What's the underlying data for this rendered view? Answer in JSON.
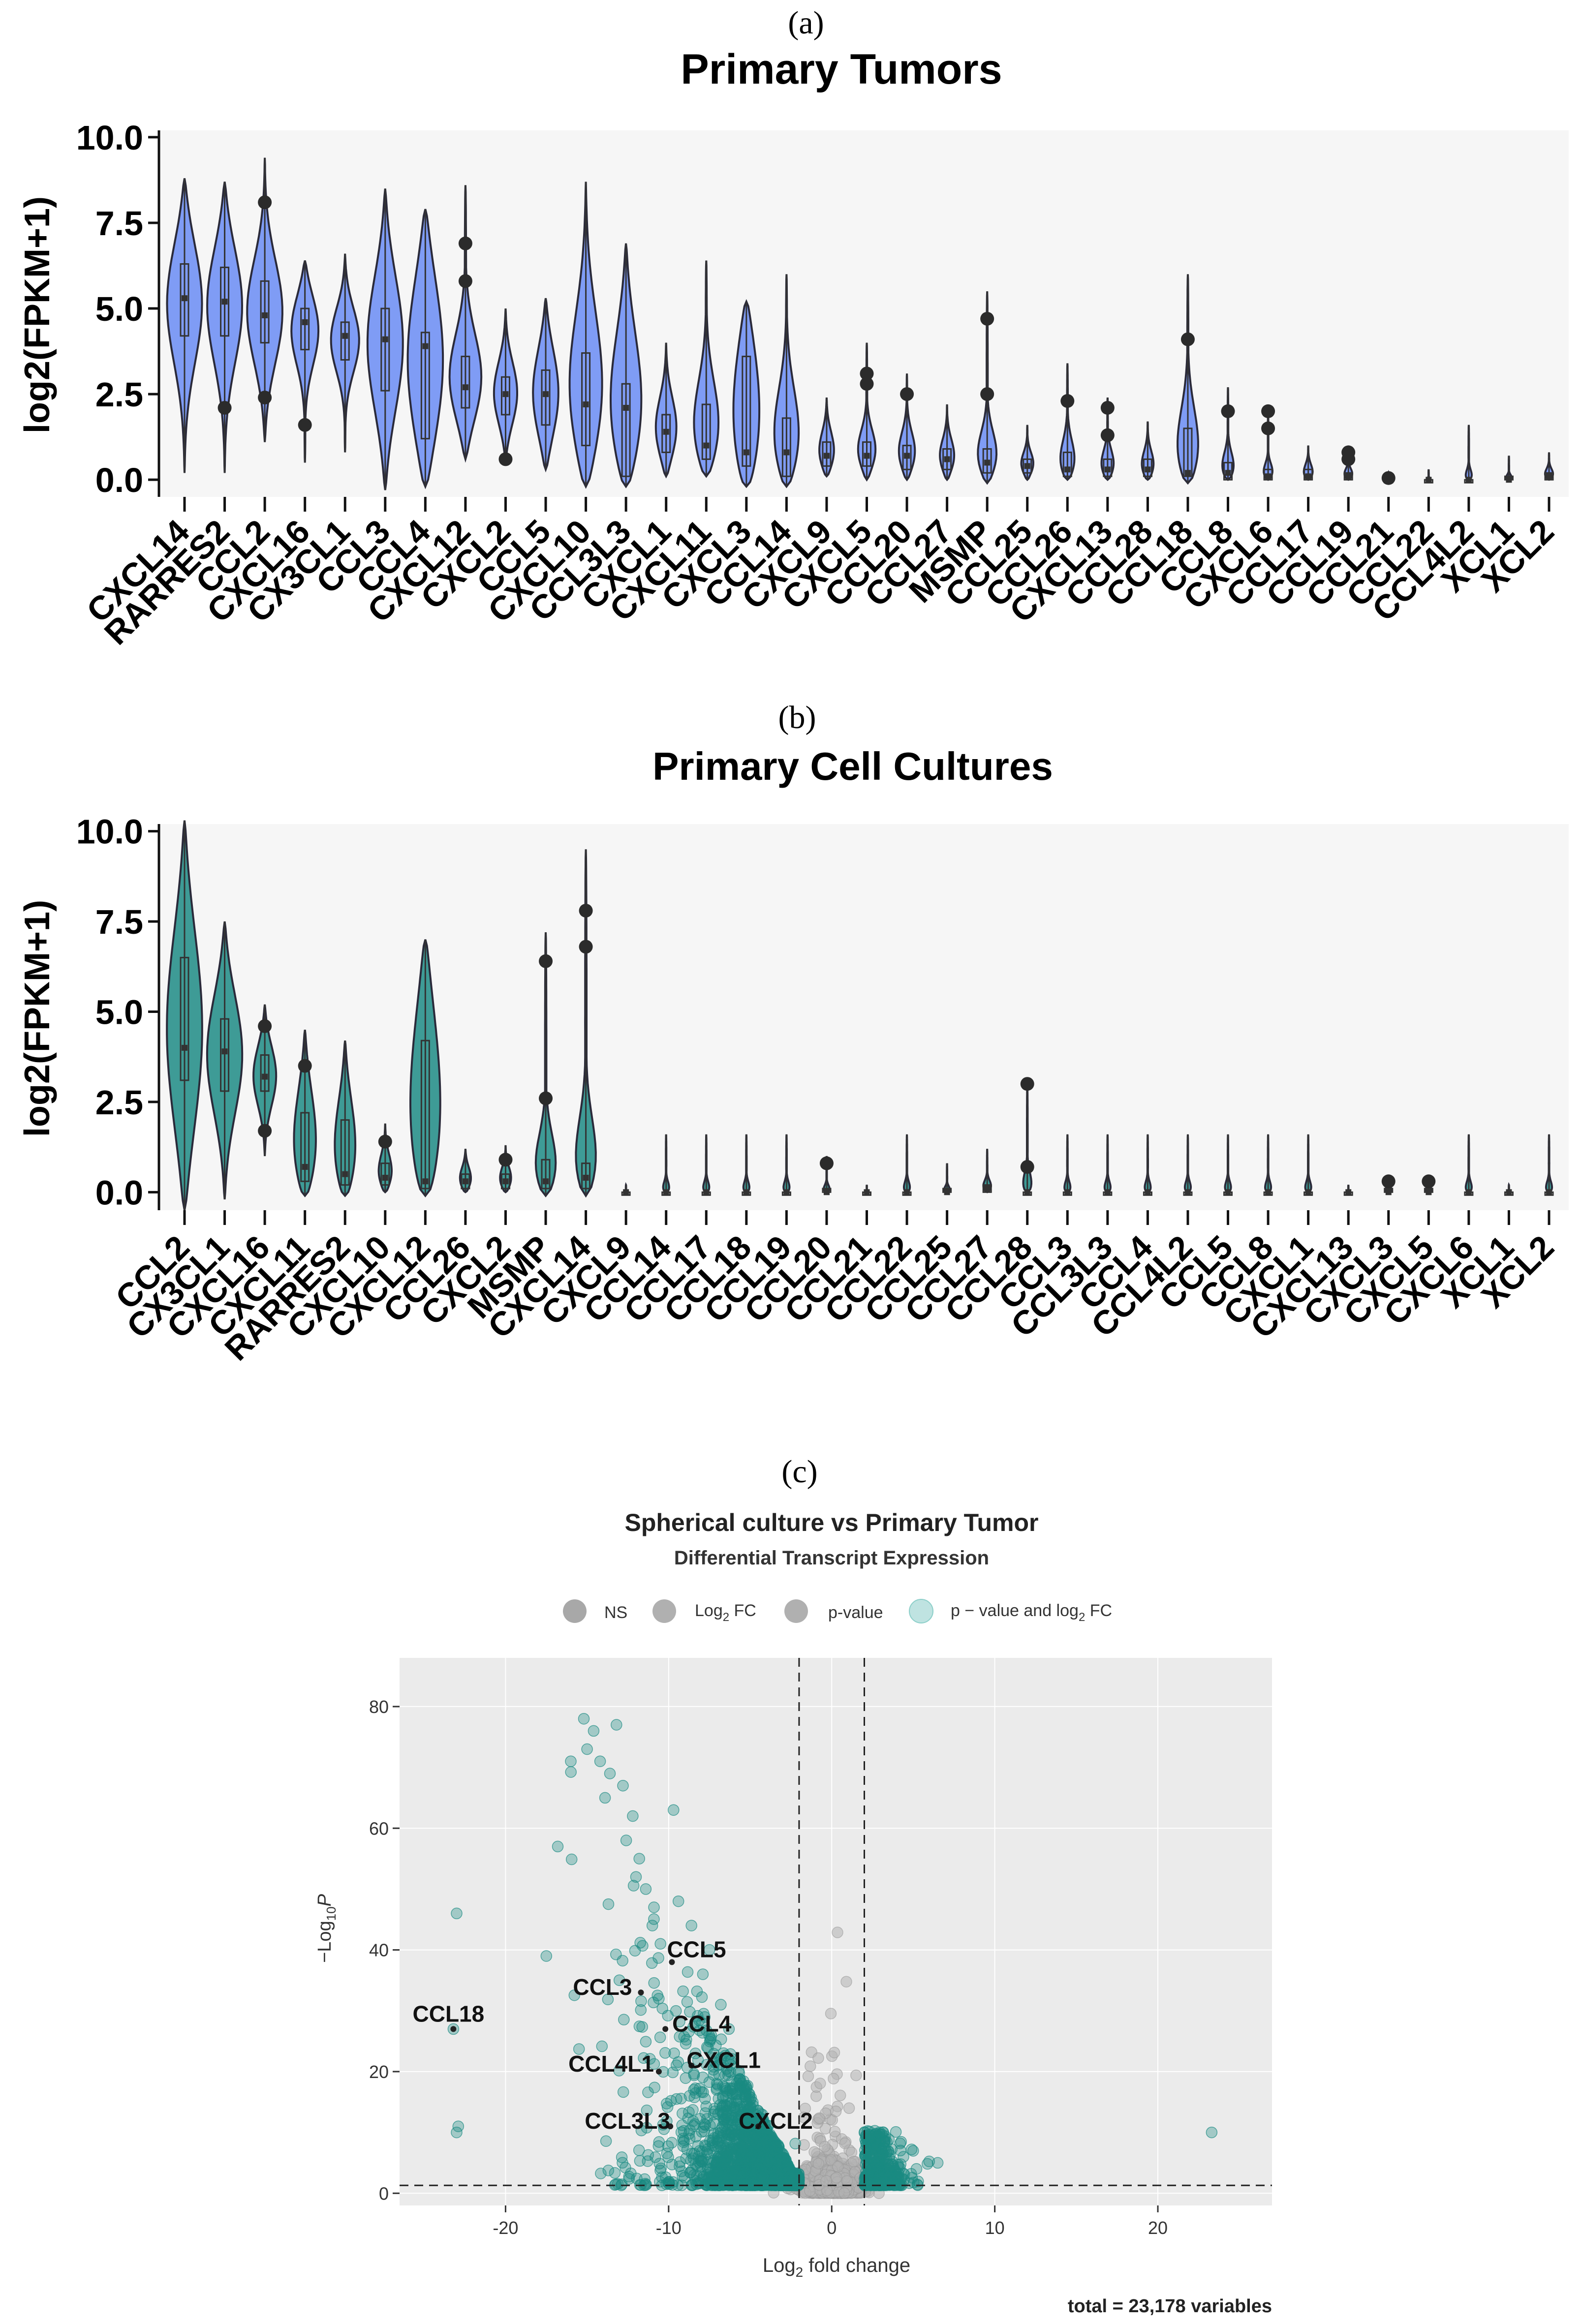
{
  "chart_data": [
    {
      "panel_label": "(a)",
      "type": "violin",
      "title": "Primary Tumors",
      "ylabel": "log2(FPKM+1)",
      "ylim": [
        -0.5,
        10.2
      ],
      "yticks": [
        0.0,
        2.5,
        5.0,
        7.5,
        10.0
      ],
      "ytick_labels": [
        "0.0",
        "2.5",
        "5.0",
        "7.5",
        "10.0"
      ],
      "fill_color": "#7f9cf5",
      "categories": [
        "CXCL14",
        "RARRES2",
        "CCL2",
        "CXCL16",
        "CX3CL1",
        "CCL3",
        "CCL4",
        "CXCL12",
        "CXCL2",
        "CCL5",
        "CXCL10",
        "CCL3L3",
        "CXCL1",
        "CXCL11",
        "CXCL3",
        "CCL14",
        "CXCL9",
        "CXCL5",
        "CCL20",
        "CCL27",
        "MSMP",
        "CCL25",
        "CCL26",
        "CXCL13",
        "CCL28",
        "CCL18",
        "CCL8",
        "CXCL6",
        "CCL17",
        "CCL19",
        "CCL21",
        "CCL22",
        "CCL4L2",
        "XCL1",
        "XCL2"
      ],
      "violins": [
        {
          "min": 0.2,
          "max": 8.8,
          "q1": 4.2,
          "median": 5.3,
          "q3": 6.3,
          "outliers": []
        },
        {
          "min": 0.2,
          "max": 8.7,
          "q1": 4.2,
          "median": 5.2,
          "q3": 6.2,
          "outliers": [
            2.1
          ]
        },
        {
          "min": 1.1,
          "max": 9.4,
          "q1": 4.0,
          "median": 4.8,
          "q3": 5.8,
          "outliers": [
            8.1,
            2.4
          ]
        },
        {
          "min": 0.5,
          "max": 6.4,
          "q1": 3.8,
          "median": 4.6,
          "q3": 5.0,
          "outliers": [
            1.6
          ]
        },
        {
          "min": 0.8,
          "max": 6.6,
          "q1": 3.5,
          "median": 4.2,
          "q3": 4.6,
          "outliers": []
        },
        {
          "min": -0.3,
          "max": 8.5,
          "q1": 2.6,
          "median": 4.1,
          "q3": 5.0,
          "outliers": []
        },
        {
          "min": -0.2,
          "max": 7.9,
          "q1": 1.2,
          "median": 3.9,
          "q3": 4.3,
          "outliers": []
        },
        {
          "min": 0.6,
          "max": 8.6,
          "q1": 2.1,
          "median": 2.7,
          "q3": 3.6,
          "outliers": [
            6.9,
            5.8
          ]
        },
        {
          "min": 0.6,
          "max": 5.0,
          "q1": 1.9,
          "median": 2.5,
          "q3": 3.0,
          "outliers": [
            0.6
          ]
        },
        {
          "min": 0.3,
          "max": 5.3,
          "q1": 1.6,
          "median": 2.5,
          "q3": 3.2,
          "outliers": []
        },
        {
          "min": -0.2,
          "max": 8.7,
          "q1": 1.0,
          "median": 2.2,
          "q3": 3.7,
          "outliers": []
        },
        {
          "min": -0.2,
          "max": 6.9,
          "q1": 0.1,
          "median": 2.1,
          "q3": 2.8,
          "outliers": []
        },
        {
          "min": 0.1,
          "max": 4.0,
          "q1": 0.8,
          "median": 1.4,
          "q3": 1.9,
          "outliers": []
        },
        {
          "min": 0.1,
          "max": 6.4,
          "q1": 0.6,
          "median": 1.0,
          "q3": 2.2,
          "outliers": []
        },
        {
          "min": -0.2,
          "max": 5.2,
          "q1": 0.4,
          "median": 0.8,
          "q3": 3.6,
          "outliers": []
        },
        {
          "min": -0.2,
          "max": 6.0,
          "q1": 0.1,
          "median": 0.8,
          "q3": 1.8,
          "outliers": []
        },
        {
          "min": 0.1,
          "max": 2.4,
          "q1": 0.4,
          "median": 0.7,
          "q3": 1.1,
          "outliers": []
        },
        {
          "min": 0.0,
          "max": 4.0,
          "q1": 0.4,
          "median": 0.7,
          "q3": 1.1,
          "outliers": [
            3.1,
            2.8
          ]
        },
        {
          "min": 0.0,
          "max": 3.1,
          "q1": 0.3,
          "median": 0.7,
          "q3": 1.0,
          "outliers": [
            2.5
          ]
        },
        {
          "min": 0.0,
          "max": 2.2,
          "q1": 0.3,
          "median": 0.6,
          "q3": 0.9,
          "outliers": []
        },
        {
          "min": -0.1,
          "max": 5.5,
          "q1": 0.2,
          "median": 0.5,
          "q3": 0.9,
          "outliers": [
            4.7,
            2.5
          ]
        },
        {
          "min": 0.0,
          "max": 1.6,
          "q1": 0.2,
          "median": 0.4,
          "q3": 0.6,
          "outliers": []
        },
        {
          "min": 0.0,
          "max": 3.4,
          "q1": 0.1,
          "median": 0.3,
          "q3": 0.8,
          "outliers": [
            2.3
          ]
        },
        {
          "min": 0.0,
          "max": 2.4,
          "q1": 0.1,
          "median": 0.3,
          "q3": 0.6,
          "outliers": [
            2.1,
            1.3
          ]
        },
        {
          "min": 0.0,
          "max": 1.7,
          "q1": 0.1,
          "median": 0.3,
          "q3": 0.6,
          "outliers": []
        },
        {
          "min": -0.1,
          "max": 6.0,
          "q1": 0.1,
          "median": 0.2,
          "q3": 1.5,
          "outliers": [
            4.1
          ]
        },
        {
          "min": 0.0,
          "max": 2.7,
          "q1": 0.0,
          "median": 0.2,
          "q3": 0.5,
          "outliers": [
            2.0
          ]
        },
        {
          "min": 0.0,
          "max": 2.1,
          "q1": 0.0,
          "median": 0.1,
          "q3": 0.3,
          "outliers": [
            2.0,
            1.5
          ]
        },
        {
          "min": 0.0,
          "max": 1.0,
          "q1": 0.0,
          "median": 0.1,
          "q3": 0.3,
          "outliers": []
        },
        {
          "min": 0.0,
          "max": 1.0,
          "q1": 0.0,
          "median": 0.1,
          "q3": 0.2,
          "outliers": [
            0.8,
            0.6
          ]
        },
        {
          "min": 0.0,
          "max": 0.2,
          "q1": 0.0,
          "median": 0.0,
          "q3": 0.0,
          "outliers": [
            0.05
          ]
        },
        {
          "min": 0.0,
          "max": 0.3,
          "q1": 0.0,
          "median": 0.0,
          "q3": 0.0,
          "outliers": []
        },
        {
          "min": 0.0,
          "max": 1.6,
          "q1": 0.0,
          "median": 0.0,
          "q3": 0.0,
          "outliers": []
        },
        {
          "min": 0.0,
          "max": 0.7,
          "q1": 0.0,
          "median": 0.0,
          "q3": 0.1,
          "outliers": []
        },
        {
          "min": 0.0,
          "max": 0.8,
          "q1": 0.0,
          "median": 0.1,
          "q3": 0.2,
          "outliers": []
        }
      ]
    },
    {
      "panel_label": "(b)",
      "type": "violin",
      "title": "Primary Cell Cultures",
      "ylabel": "log2(FPKM+1)",
      "ylim": [
        -0.5,
        10.2
      ],
      "yticks": [
        0.0,
        2.5,
        5.0,
        7.5,
        10.0
      ],
      "ytick_labels": [
        "0.0",
        "2.5",
        "5.0",
        "7.5",
        "10.0"
      ],
      "fill_color": "#3e9b96",
      "categories": [
        "CCL2",
        "CX3CL1",
        "CXCL16",
        "CXCL11",
        "RARRES2",
        "CXCL10",
        "CXCL12",
        "CCL26",
        "CXCL2",
        "MSMP",
        "CXCL14",
        "CXCL9",
        "CCL14",
        "CCL17",
        "CCL18",
        "CCL19",
        "CCL20",
        "CCL21",
        "CCL22",
        "CCL25",
        "CCL27",
        "CCL28",
        "CCL3",
        "CCL3L3",
        "CCL4",
        "CCL4L2",
        "CCL5",
        "CCL8",
        "CXCL1",
        "CXCL13",
        "CXCL3",
        "CXCL5",
        "CXCL6",
        "XCL1",
        "XCL2"
      ],
      "violins": [
        {
          "min": -0.5,
          "max": 10.3,
          "q1": 3.1,
          "median": 4.0,
          "q3": 6.5,
          "outliers": []
        },
        {
          "min": -0.2,
          "max": 7.5,
          "q1": 2.8,
          "median": 3.9,
          "q3": 4.8,
          "outliers": []
        },
        {
          "min": 1.0,
          "max": 5.2,
          "q1": 2.8,
          "median": 3.2,
          "q3": 3.8,
          "outliers": [
            4.6,
            1.7
          ]
        },
        {
          "min": -0.1,
          "max": 4.5,
          "q1": 0.3,
          "median": 0.7,
          "q3": 2.2,
          "outliers": [
            3.5
          ]
        },
        {
          "min": -0.1,
          "max": 4.2,
          "q1": 0.2,
          "median": 0.5,
          "q3": 2.0,
          "outliers": []
        },
        {
          "min": 0.0,
          "max": 1.9,
          "q1": 0.2,
          "median": 0.4,
          "q3": 0.8,
          "outliers": [
            1.4
          ]
        },
        {
          "min": -0.1,
          "max": 7.0,
          "q1": 0.1,
          "median": 0.3,
          "q3": 4.2,
          "outliers": []
        },
        {
          "min": 0.0,
          "max": 1.2,
          "q1": 0.1,
          "median": 0.3,
          "q3": 0.5,
          "outliers": []
        },
        {
          "min": 0.0,
          "max": 1.3,
          "q1": 0.1,
          "median": 0.3,
          "q3": 0.5,
          "outliers": [
            0.9
          ]
        },
        {
          "min": -0.1,
          "max": 7.2,
          "q1": 0.1,
          "median": 0.3,
          "q3": 0.9,
          "outliers": [
            6.4,
            2.6
          ]
        },
        {
          "min": -0.1,
          "max": 9.5,
          "q1": 0.1,
          "median": 0.4,
          "q3": 0.8,
          "outliers": [
            7.8,
            6.8
          ]
        },
        {
          "min": 0.0,
          "max": 0.2,
          "q1": 0.0,
          "median": 0.0,
          "q3": 0.0,
          "outliers": []
        },
        {
          "min": 0.0,
          "max": 1.6,
          "q1": 0.0,
          "median": 0.0,
          "q3": 0.0,
          "outliers": []
        },
        {
          "min": 0.0,
          "max": 1.6,
          "q1": 0.0,
          "median": 0.0,
          "q3": 0.0,
          "outliers": []
        },
        {
          "min": 0.0,
          "max": 1.6,
          "q1": 0.0,
          "median": 0.0,
          "q3": 0.0,
          "outliers": []
        },
        {
          "min": 0.0,
          "max": 1.6,
          "q1": 0.0,
          "median": 0.0,
          "q3": 0.0,
          "outliers": []
        },
        {
          "min": 0.0,
          "max": 1.0,
          "q1": 0.0,
          "median": 0.0,
          "q3": 0.1,
          "outliers": [
            0.8
          ]
        },
        {
          "min": 0.0,
          "max": 0.2,
          "q1": 0.0,
          "median": 0.0,
          "q3": 0.0,
          "outliers": []
        },
        {
          "min": 0.0,
          "max": 1.6,
          "q1": 0.0,
          "median": 0.0,
          "q3": 0.0,
          "outliers": []
        },
        {
          "min": 0.0,
          "max": 0.8,
          "q1": 0.0,
          "median": 0.0,
          "q3": 0.1,
          "outliers": []
        },
        {
          "min": 0.0,
          "max": 1.2,
          "q1": 0.0,
          "median": 0.1,
          "q3": 0.2,
          "outliers": []
        },
        {
          "min": 0.0,
          "max": 3.0,
          "q1": 0.0,
          "median": 0.0,
          "q3": 0.0,
          "outliers": [
            3.0,
            0.7
          ]
        },
        {
          "min": 0.0,
          "max": 1.6,
          "q1": 0.0,
          "median": 0.0,
          "q3": 0.0,
          "outliers": []
        },
        {
          "min": 0.0,
          "max": 1.6,
          "q1": 0.0,
          "median": 0.0,
          "q3": 0.0,
          "outliers": []
        },
        {
          "min": 0.0,
          "max": 1.6,
          "q1": 0.0,
          "median": 0.0,
          "q3": 0.0,
          "outliers": []
        },
        {
          "min": 0.0,
          "max": 1.6,
          "q1": 0.0,
          "median": 0.0,
          "q3": 0.0,
          "outliers": []
        },
        {
          "min": 0.0,
          "max": 1.6,
          "q1": 0.0,
          "median": 0.0,
          "q3": 0.0,
          "outliers": []
        },
        {
          "min": 0.0,
          "max": 1.6,
          "q1": 0.0,
          "median": 0.0,
          "q3": 0.0,
          "outliers": []
        },
        {
          "min": 0.0,
          "max": 1.6,
          "q1": 0.0,
          "median": 0.0,
          "q3": 0.0,
          "outliers": []
        },
        {
          "min": 0.0,
          "max": 0.2,
          "q1": 0.0,
          "median": 0.0,
          "q3": 0.0,
          "outliers": []
        },
        {
          "min": 0.0,
          "max": 0.3,
          "q1": 0.0,
          "median": 0.0,
          "q3": 0.1,
          "outliers": [
            0.3
          ]
        },
        {
          "min": 0.0,
          "max": 0.4,
          "q1": 0.0,
          "median": 0.0,
          "q3": 0.1,
          "outliers": [
            0.3
          ]
        },
        {
          "min": 0.0,
          "max": 1.6,
          "q1": 0.0,
          "median": 0.0,
          "q3": 0.0,
          "outliers": []
        },
        {
          "min": 0.0,
          "max": 0.2,
          "q1": 0.0,
          "median": 0.0,
          "q3": 0.0,
          "outliers": []
        },
        {
          "min": 0.0,
          "max": 1.6,
          "q1": 0.0,
          "median": 0.0,
          "q3": 0.0,
          "outliers": []
        }
      ]
    },
    {
      "panel_label": "(c)",
      "type": "scatter",
      "title": "Spherical culture vs Primary Tumor",
      "subtitle": "Differential Transcript Expression",
      "xlabel": "Log2 fold change",
      "xlabel_base": "Log",
      "xlabel_sub": "2",
      "xlabel_rest": " fold change",
      "ylabel_prefix": "−Log",
      "ylabel_sub": "10",
      "ylabel_italic": "P",
      "xlim": [
        -26.5,
        27
      ],
      "ylim": [
        -2,
        88
      ],
      "xticks": [
        -20,
        -10,
        0,
        10,
        20
      ],
      "xtick_labels": [
        "-20",
        "-10",
        "0",
        "10",
        "20"
      ],
      "yticks": [
        0,
        20,
        40,
        60,
        80
      ],
      "ytick_labels": [
        "0",
        "20",
        "40",
        "60",
        "80"
      ],
      "fc_cutoff": [
        -2,
        2
      ],
      "p_cutoff": 1.3,
      "legend": [
        {
          "label": "NS",
          "color": "#a8a8a8"
        },
        {
          "label": "Log2 FC",
          "label_base": "Log",
          "label_sub": "2",
          "label_rest": " FC",
          "color": "#b0b0b0"
        },
        {
          "label": "p-value",
          "color": "#b0b0b0"
        },
        {
          "label": "p − value and log2 FC",
          "label_base": "p − value and log",
          "label_sub": "2",
          "label_rest": " FC",
          "color": "#bfe3e1"
        }
      ],
      "sig_color": "#1a8a82",
      "ns_color": "#b2b2b2",
      "labeled_points": [
        {
          "label": "CCL5",
          "x": -9.8,
          "y": 38
        },
        {
          "label": "CCL3",
          "x": -11.7,
          "y": 33
        },
        {
          "label": "CCL4",
          "x": -10.2,
          "y": 27
        },
        {
          "label": "CCL18",
          "x": -23.2,
          "y": 27
        },
        {
          "label": "CCL4L1",
          "x": -10.6,
          "y": 20
        },
        {
          "label": "CXCL1",
          "x": -8.6,
          "y": 21
        },
        {
          "label": "CCL3L3",
          "x": -9.9,
          "y": 11
        },
        {
          "label": "CXCL2",
          "x": -4.5,
          "y": 11
        }
      ],
      "footer": "total = 23,178 variables"
    }
  ]
}
